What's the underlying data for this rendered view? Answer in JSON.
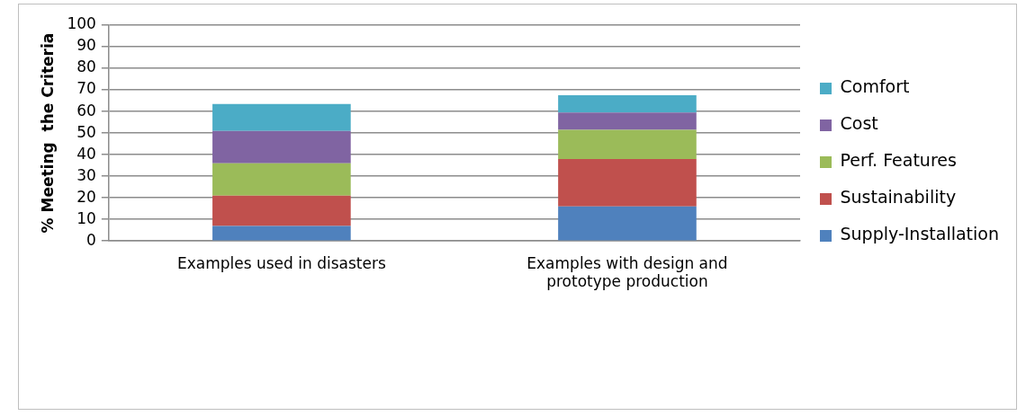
{
  "chart_data": {
    "type": "bar",
    "stacked": true,
    "ylabel": "% Meeting  the Criteria",
    "categories": [
      "Examples used in disasters",
      "Examples with design and prototype production"
    ],
    "series": [
      {
        "name": "Supply-Installation",
        "color": "#4f81bd",
        "values": [
          7,
          16
        ]
      },
      {
        "name": "Sustainability",
        "color": "#c0504d",
        "values": [
          14,
          22
        ]
      },
      {
        "name": "Perf. Features",
        "color": "#9bbb59",
        "values": [
          15,
          13.5
        ]
      },
      {
        "name": "Cost",
        "color": "#8064a2",
        "values": [
          15,
          8
        ]
      },
      {
        "name": "Comfort",
        "color": "#4bacc6",
        "values": [
          12.5,
          8
        ]
      }
    ],
    "ylim": [
      0,
      100
    ],
    "yticks": [
      0,
      10,
      20,
      30,
      40,
      50,
      60,
      70,
      80,
      90,
      100
    ],
    "grid": "y",
    "legend": "right"
  }
}
